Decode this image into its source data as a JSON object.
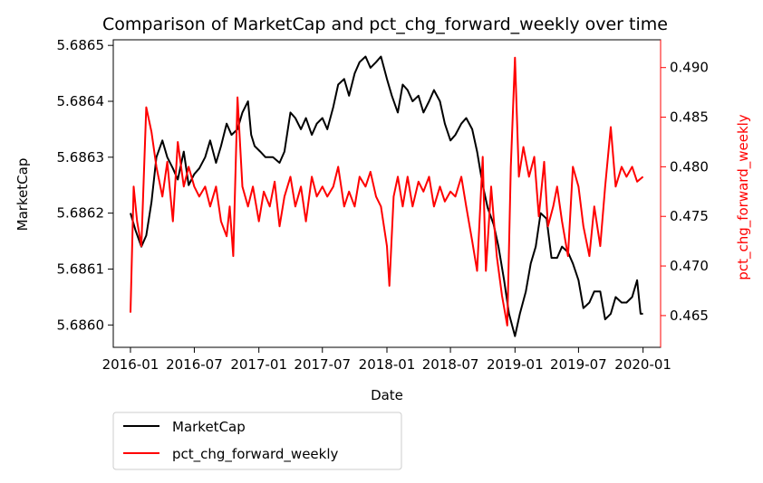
{
  "chart_data": {
    "type": "line",
    "title": "Comparison of MarketCap and pct_chg_forward_weekly over time",
    "xlabel": "Date",
    "ylabel": "MarketCap",
    "ylabel_right": "pct_chg_forward_weekly",
    "x_ticks": [
      "2016-01",
      "2016-07",
      "2017-01",
      "2017-07",
      "2018-01",
      "2018-07",
      "2019-01",
      "2019-07",
      "2020-01"
    ],
    "xlim": [
      "2015-11-13",
      "2020-02-20"
    ],
    "y_left": {
      "lim": [
        5.68596,
        5.68651
      ],
      "ticks": [
        "5.6860",
        "5.6861",
        "5.6862",
        "5.6863",
        "5.6864",
        "5.6865"
      ]
    },
    "y_right": {
      "lim": [
        0.4618,
        0.4928
      ],
      "ticks": [
        "0.465",
        "0.470",
        "0.475",
        "0.480",
        "0.485",
        "0.490"
      ]
    },
    "grid": false,
    "legend": {
      "placement": "below-left",
      "entries": [
        "MarketCap",
        "pct_chg_forward_weekly"
      ]
    },
    "colors": {
      "series1": "#000000",
      "series2": "#ff0000",
      "right_axis": "#ff0000"
    },
    "series": [
      {
        "name": "MarketCap",
        "axis": "left",
        "points": [
          [
            "2016-01-01",
            5.6862
          ],
          [
            "2016-01-15",
            5.68617
          ],
          [
            "2016-02-01",
            5.68614
          ],
          [
            "2016-02-15",
            5.68616
          ],
          [
            "2016-03-01",
            5.68622
          ],
          [
            "2016-03-15",
            5.6863
          ],
          [
            "2016-04-01",
            5.68633
          ],
          [
            "2016-04-15",
            5.6863
          ],
          [
            "2016-05-01",
            5.68628
          ],
          [
            "2016-05-15",
            5.68626
          ],
          [
            "2016-06-01",
            5.68631
          ],
          [
            "2016-06-15",
            5.68625
          ],
          [
            "2016-07-01",
            5.68627
          ],
          [
            "2016-07-15",
            5.68628
          ],
          [
            "2016-08-01",
            5.6863
          ],
          [
            "2016-08-15",
            5.68633
          ],
          [
            "2016-09-01",
            5.68629
          ],
          [
            "2016-09-15",
            5.68632
          ],
          [
            "2016-10-01",
            5.68636
          ],
          [
            "2016-10-15",
            5.68634
          ],
          [
            "2016-11-01",
            5.68635
          ],
          [
            "2016-11-15",
            5.68638
          ],
          [
            "2016-12-01",
            5.6864
          ],
          [
            "2016-12-10",
            5.68634
          ],
          [
            "2016-12-20",
            5.68632
          ],
          [
            "2017-01-05",
            5.68631
          ],
          [
            "2017-01-20",
            5.6863
          ],
          [
            "2017-02-10",
            5.6863
          ],
          [
            "2017-03-01",
            5.68629
          ],
          [
            "2017-03-15",
            5.68631
          ],
          [
            "2017-04-01",
            5.68638
          ],
          [
            "2017-04-15",
            5.68637
          ],
          [
            "2017-05-01",
            5.68635
          ],
          [
            "2017-05-15",
            5.68637
          ],
          [
            "2017-06-01",
            5.68634
          ],
          [
            "2017-06-15",
            5.68636
          ],
          [
            "2017-07-01",
            5.68637
          ],
          [
            "2017-07-15",
            5.68635
          ],
          [
            "2017-08-01",
            5.68639
          ],
          [
            "2017-08-15",
            5.68643
          ],
          [
            "2017-09-01",
            5.68644
          ],
          [
            "2017-09-15",
            5.68641
          ],
          [
            "2017-10-01",
            5.68645
          ],
          [
            "2017-10-15",
            5.68647
          ],
          [
            "2017-11-01",
            5.68648
          ],
          [
            "2017-11-15",
            5.68646
          ],
          [
            "2017-12-01",
            5.68647
          ],
          [
            "2017-12-15",
            5.68648
          ],
          [
            "2018-01-01",
            5.68644
          ],
          [
            "2018-01-15",
            5.68641
          ],
          [
            "2018-02-01",
            5.68638
          ],
          [
            "2018-02-15",
            5.68643
          ],
          [
            "2018-03-01",
            5.68642
          ],
          [
            "2018-03-15",
            5.6864
          ],
          [
            "2018-04-01",
            5.68641
          ],
          [
            "2018-04-15",
            5.68638
          ],
          [
            "2018-05-01",
            5.6864
          ],
          [
            "2018-05-15",
            5.68642
          ],
          [
            "2018-06-01",
            5.6864
          ],
          [
            "2018-06-15",
            5.68636
          ],
          [
            "2018-07-01",
            5.68633
          ],
          [
            "2018-07-15",
            5.68634
          ],
          [
            "2018-08-01",
            5.68636
          ],
          [
            "2018-08-15",
            5.68637
          ],
          [
            "2018-09-01",
            5.68635
          ],
          [
            "2018-09-15",
            5.68631
          ],
          [
            "2018-10-01",
            5.68625
          ],
          [
            "2018-10-15",
            5.68621
          ],
          [
            "2018-11-01",
            5.68618
          ],
          [
            "2018-11-15",
            5.68614
          ],
          [
            "2018-12-01",
            5.68608
          ],
          [
            "2018-12-15",
            5.68602
          ],
          [
            "2019-01-01",
            5.68598
          ],
          [
            "2019-01-15",
            5.68602
          ],
          [
            "2019-02-01",
            5.68606
          ],
          [
            "2019-02-15",
            5.68611
          ],
          [
            "2019-03-01",
            5.68614
          ],
          [
            "2019-03-15",
            5.6862
          ],
          [
            "2019-04-01",
            5.68619
          ],
          [
            "2019-04-15",
            5.68612
          ],
          [
            "2019-05-01",
            5.68612
          ],
          [
            "2019-05-15",
            5.68614
          ],
          [
            "2019-06-01",
            5.68613
          ],
          [
            "2019-06-15",
            5.68611
          ],
          [
            "2019-07-01",
            5.68608
          ],
          [
            "2019-07-15",
            5.68603
          ],
          [
            "2019-08-01",
            5.68604
          ],
          [
            "2019-08-15",
            5.68606
          ],
          [
            "2019-09-01",
            5.68606
          ],
          [
            "2019-09-15",
            5.68601
          ],
          [
            "2019-10-01",
            5.68602
          ],
          [
            "2019-10-15",
            5.68605
          ],
          [
            "2019-11-01",
            5.68604
          ],
          [
            "2019-11-15",
            5.68604
          ],
          [
            "2019-12-01",
            5.68605
          ],
          [
            "2019-12-15",
            5.68608
          ],
          [
            "2019-12-25",
            5.68602
          ],
          [
            "2020-01-01",
            5.68602
          ]
        ]
      },
      {
        "name": "pct_chg_forward_weekly",
        "axis": "right",
        "points": [
          [
            "2016-01-01",
            0.4653
          ],
          [
            "2016-01-10",
            0.478
          ],
          [
            "2016-01-20",
            0.4745
          ],
          [
            "2016-02-01",
            0.472
          ],
          [
            "2016-02-15",
            0.486
          ],
          [
            "2016-03-01",
            0.4835
          ],
          [
            "2016-03-15",
            0.48
          ],
          [
            "2016-04-01",
            0.477
          ],
          [
            "2016-04-15",
            0.4805
          ],
          [
            "2016-05-01",
            0.4745
          ],
          [
            "2016-05-15",
            0.4825
          ],
          [
            "2016-06-01",
            0.478
          ],
          [
            "2016-06-15",
            0.48
          ],
          [
            "2016-07-01",
            0.478
          ],
          [
            "2016-07-15",
            0.477
          ],
          [
            "2016-08-01",
            0.478
          ],
          [
            "2016-08-15",
            0.476
          ],
          [
            "2016-09-01",
            0.478
          ],
          [
            "2016-09-15",
            0.4745
          ],
          [
            "2016-10-01",
            0.473
          ],
          [
            "2016-10-10",
            0.476
          ],
          [
            "2016-10-20",
            0.471
          ],
          [
            "2016-11-01",
            0.487
          ],
          [
            "2016-11-15",
            0.478
          ],
          [
            "2016-12-01",
            0.476
          ],
          [
            "2016-12-15",
            0.478
          ],
          [
            "2017-01-01",
            0.4745
          ],
          [
            "2017-01-15",
            0.4775
          ],
          [
            "2017-02-01",
            0.476
          ],
          [
            "2017-02-15",
            0.4785
          ],
          [
            "2017-03-01",
            0.474
          ],
          [
            "2017-03-15",
            0.477
          ],
          [
            "2017-04-01",
            0.479
          ],
          [
            "2017-04-15",
            0.476
          ],
          [
            "2017-05-01",
            0.478
          ],
          [
            "2017-05-15",
            0.4745
          ],
          [
            "2017-06-01",
            0.479
          ],
          [
            "2017-06-15",
            0.477
          ],
          [
            "2017-07-01",
            0.478
          ],
          [
            "2017-07-15",
            0.477
          ],
          [
            "2017-08-01",
            0.478
          ],
          [
            "2017-08-15",
            0.48
          ],
          [
            "2017-09-01",
            0.476
          ],
          [
            "2017-09-15",
            0.4775
          ],
          [
            "2017-10-01",
            0.476
          ],
          [
            "2017-10-15",
            0.479
          ],
          [
            "2017-11-01",
            0.478
          ],
          [
            "2017-11-15",
            0.4795
          ],
          [
            "2017-12-01",
            0.477
          ],
          [
            "2017-12-15",
            0.476
          ],
          [
            "2018-01-01",
            0.472
          ],
          [
            "2018-01-08",
            0.468
          ],
          [
            "2018-01-20",
            0.477
          ],
          [
            "2018-02-01",
            0.479
          ],
          [
            "2018-02-15",
            0.476
          ],
          [
            "2018-03-01",
            0.479
          ],
          [
            "2018-03-15",
            0.476
          ],
          [
            "2018-04-01",
            0.4785
          ],
          [
            "2018-04-15",
            0.4775
          ],
          [
            "2018-05-01",
            0.479
          ],
          [
            "2018-05-15",
            0.476
          ],
          [
            "2018-06-01",
            0.478
          ],
          [
            "2018-06-15",
            0.4765
          ],
          [
            "2018-07-01",
            0.4775
          ],
          [
            "2018-07-15",
            0.477
          ],
          [
            "2018-08-01",
            0.479
          ],
          [
            "2018-08-15",
            0.476
          ],
          [
            "2018-09-01",
            0.4725
          ],
          [
            "2018-09-15",
            0.4695
          ],
          [
            "2018-10-01",
            0.481
          ],
          [
            "2018-10-10",
            0.4695
          ],
          [
            "2018-10-25",
            0.478
          ],
          [
            "2018-11-10",
            0.471
          ],
          [
            "2018-11-25",
            0.467
          ],
          [
            "2018-12-10",
            0.464
          ],
          [
            "2018-12-20",
            0.48
          ],
          [
            "2019-01-01",
            0.491
          ],
          [
            "2019-01-12",
            0.479
          ],
          [
            "2019-01-25",
            0.482
          ],
          [
            "2019-02-10",
            0.479
          ],
          [
            "2019-02-25",
            0.481
          ],
          [
            "2019-03-10",
            0.475
          ],
          [
            "2019-03-25",
            0.4805
          ],
          [
            "2019-04-05",
            0.474
          ],
          [
            "2019-04-20",
            0.476
          ],
          [
            "2019-05-01",
            0.478
          ],
          [
            "2019-05-15",
            0.4745
          ],
          [
            "2019-06-01",
            0.471
          ],
          [
            "2019-06-15",
            0.48
          ],
          [
            "2019-07-01",
            0.478
          ],
          [
            "2019-07-15",
            0.474
          ],
          [
            "2019-08-01",
            0.471
          ],
          [
            "2019-08-15",
            0.476
          ],
          [
            "2019-09-01",
            0.472
          ],
          [
            "2019-09-15",
            0.478
          ],
          [
            "2019-10-01",
            0.484
          ],
          [
            "2019-10-15",
            0.478
          ],
          [
            "2019-11-01",
            0.48
          ],
          [
            "2019-11-15",
            0.479
          ],
          [
            "2019-12-01",
            0.48
          ],
          [
            "2019-12-15",
            0.4785
          ],
          [
            "2020-01-01",
            0.479
          ]
        ]
      }
    ]
  }
}
